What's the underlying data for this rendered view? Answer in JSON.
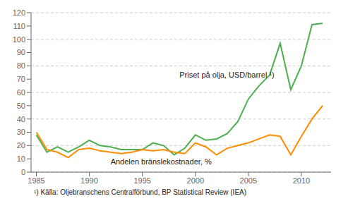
{
  "chart_data": {
    "type": "line",
    "x": [
      1985,
      1986,
      1987,
      1988,
      1989,
      1990,
      1991,
      1992,
      1993,
      1994,
      1995,
      1996,
      1997,
      1998,
      1999,
      2000,
      2001,
      2002,
      2003,
      2004,
      2005,
      2006,
      2007,
      2008,
      2009,
      2010,
      2011,
      2012
    ],
    "series": [
      {
        "color": "#4caf50",
        "values": [
          28,
          15,
          19,
          15,
          19,
          24,
          20,
          19,
          17,
          17,
          17,
          22,
          20,
          13,
          18,
          28,
          24,
          25,
          29,
          38,
          55,
          65,
          73,
          97,
          62,
          80,
          111,
          112
        ]
      },
      {
        "color": "#ff8c00",
        "values": [
          30,
          17,
          15,
          11,
          17,
          18,
          16,
          15,
          14,
          15,
          17,
          16,
          17,
          15,
          14,
          22,
          19,
          13,
          18,
          20,
          22,
          25,
          28,
          27,
          13,
          27,
          40,
          50
        ]
      }
    ],
    "xlim": [
      1984.5,
      2012.8
    ],
    "xticks": [
      1985,
      1990,
      1995,
      2000,
      2005,
      2010
    ],
    "ylim": [
      0,
      120
    ],
    "yticks": [
      0,
      10,
      20,
      30,
      40,
      50,
      60,
      70,
      80,
      90,
      100,
      110,
      120
    ],
    "grid": true,
    "annotations": [
      {
        "text": "Priset på olja, USD/barrel ¹)",
        "x": 1998.5,
        "y": 73
      },
      {
        "text": "Andelen bränslekostnader, %",
        "x": 1992,
        "y": 8
      }
    ],
    "footnote": "¹) Källa: Oljebranschens Centralförbund, BP Statistical Review (IEA)"
  }
}
